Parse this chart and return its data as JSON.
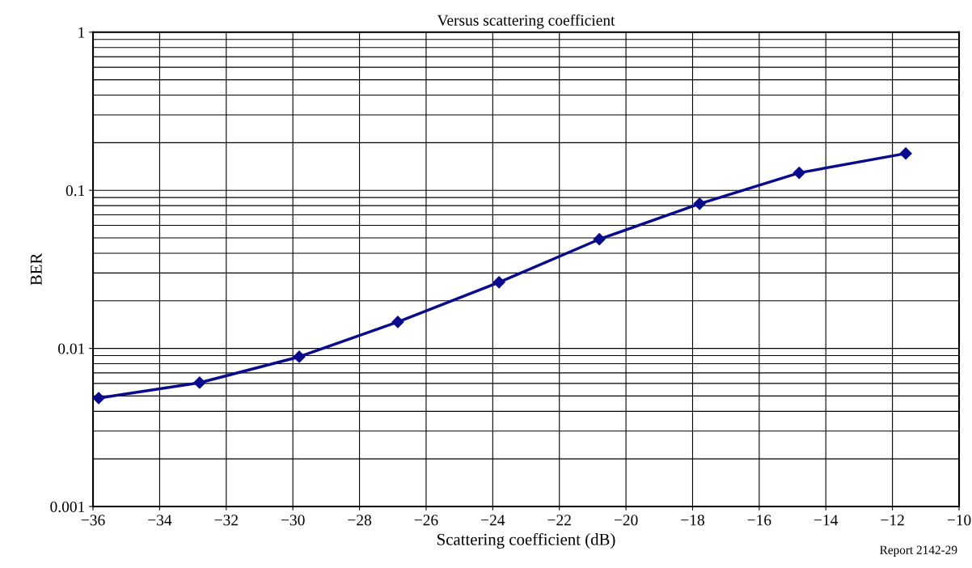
{
  "chart_data": {
    "type": "line",
    "title": "Versus scattering coefficient",
    "xlabel": "Scattering coefficient (dB)",
    "ylabel": "BER",
    "x": [
      -35.83,
      -32.8,
      -29.81,
      -26.85,
      -23.81,
      -20.8,
      -17.79,
      -14.8,
      -11.6
    ],
    "series": [
      {
        "color": "#0a0a8c",
        "values": [
          0.00485,
          0.00607,
          0.00885,
          0.0147,
          0.0262,
          0.049,
          0.0822,
          0.129,
          0.171
        ]
      }
    ],
    "log": "y",
    "xlim": [
      -36,
      -10
    ],
    "ylim": [
      0.001,
      1
    ],
    "xticks": [
      {
        "value": -36,
        "label": "−36"
      },
      {
        "value": -34,
        "label": "−34"
      },
      {
        "value": -32,
        "label": "−32"
      },
      {
        "value": -30,
        "label": "−30"
      },
      {
        "value": -28,
        "label": "−28"
      },
      {
        "value": -26,
        "label": "−26"
      },
      {
        "value": -24,
        "label": "−24"
      },
      {
        "value": -22,
        "label": "−22"
      },
      {
        "value": -20,
        "label": "−20"
      },
      {
        "value": -18,
        "label": "−18"
      },
      {
        "value": -16,
        "label": "−16"
      },
      {
        "value": -14,
        "label": "−14"
      },
      {
        "value": -12,
        "label": "−12"
      },
      {
        "value": -10,
        "label": "−10"
      }
    ],
    "yticks": [
      0.001,
      0.01,
      0.1,
      1
    ],
    "grid": true,
    "marker": "diamond",
    "line_style": "solid",
    "legend": false,
    "annotations": [
      "Report 2142-29"
    ]
  }
}
